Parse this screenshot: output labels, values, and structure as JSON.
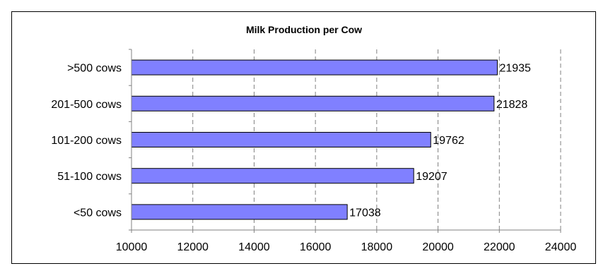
{
  "chart_data": {
    "type": "bar",
    "orientation": "horizontal",
    "title": "Milk Production per Cow",
    "xlabel": "",
    "ylabel": "",
    "categories": [
      ">500 cows",
      "201-500 cows",
      "101-200 cows",
      "51-100 cows",
      "<50 cows"
    ],
    "values": [
      21935,
      21828,
      19762,
      19207,
      17038
    ],
    "xlim": [
      10000,
      24000
    ],
    "xticks": [
      10000,
      12000,
      14000,
      16000,
      18000,
      20000,
      22000,
      24000
    ],
    "grid": "vertical dashed",
    "legend": "none",
    "data_labels": true,
    "colors": {
      "bar_fill": "#8080FF",
      "bar_stroke": "#000000",
      "grid": "#808080"
    }
  }
}
